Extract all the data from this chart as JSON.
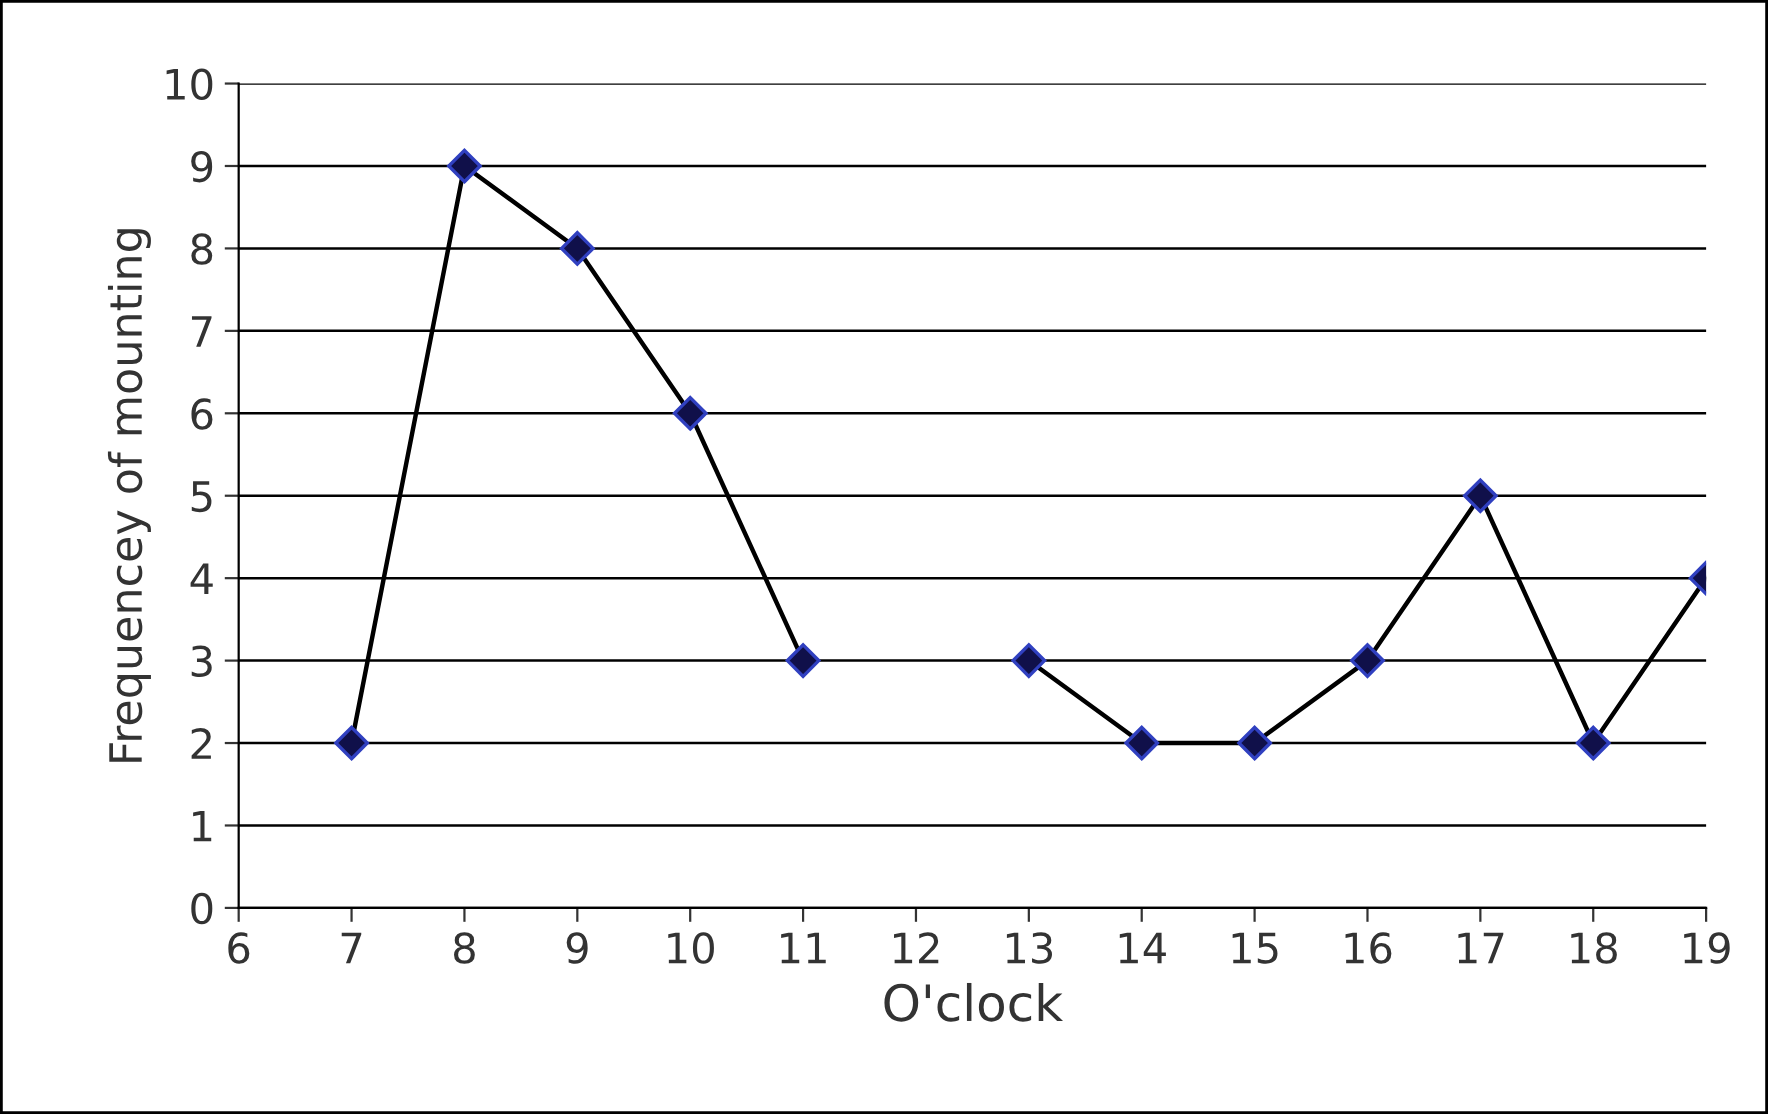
{
  "chart_data": {
    "type": "line",
    "xlabel": "O'clock",
    "ylabel": "Frequencey of mounting",
    "x": [
      7,
      8,
      9,
      10,
      11,
      12,
      13,
      14,
      15,
      16,
      17,
      18,
      19
    ],
    "series": [
      {
        "color": "#000000",
        "values": [
          2,
          9,
          8,
          6,
          3,
          null,
          3,
          2,
          2,
          3,
          5,
          2,
          4
        ]
      }
    ],
    "xlim": [
      6,
      19
    ],
    "xticks": [
      6,
      7,
      8,
      9,
      10,
      11,
      12,
      13,
      14,
      15,
      16,
      17,
      18,
      19
    ],
    "ylim": [
      0,
      10
    ],
    "yticks": [
      0,
      1,
      2,
      3,
      4,
      5,
      6,
      7,
      8,
      9,
      10
    ],
    "grid": "y",
    "marker": "diamond",
    "line_style": "solid"
  }
}
